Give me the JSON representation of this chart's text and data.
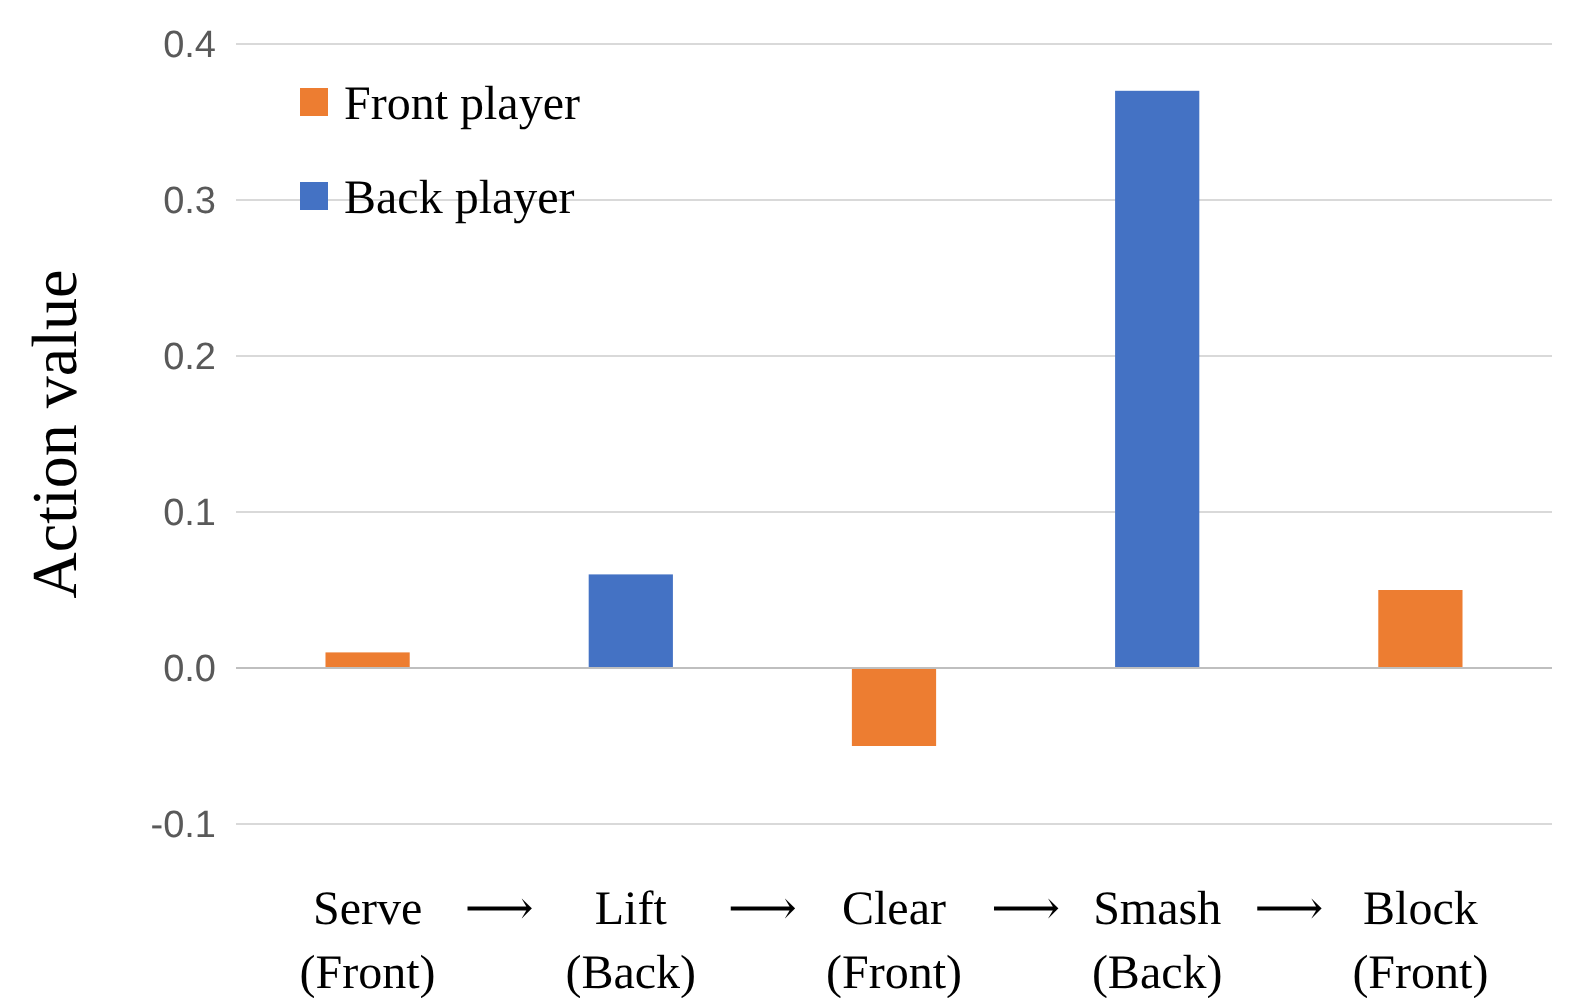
{
  "chart_data": {
    "type": "bar",
    "ylabel": "Action value",
    "categories": [
      "Serve (Front)",
      "Lift (Back)",
      "Clear (Front)",
      "Smash (Back)",
      "Block (Front)"
    ],
    "series": [
      {
        "name": "Front player",
        "color": "#ed7d31",
        "values": [
          0.01,
          null,
          -0.05,
          null,
          0.05
        ]
      },
      {
        "name": "Back player",
        "color": "#4472c4",
        "values": [
          null,
          0.06,
          null,
          0.37,
          null
        ]
      }
    ],
    "ylim": [
      -0.1,
      0.4
    ],
    "yticks": [
      {
        "value": -0.1,
        "label": "-0.1"
      },
      {
        "value": 0,
        "label": "0.0"
      },
      {
        "value": 0.1,
        "label": "0.1"
      },
      {
        "value": 0.2,
        "label": "0.2"
      },
      {
        "value": 0.3,
        "label": "0.3"
      },
      {
        "value": 0.4,
        "label": "0.4"
      }
    ],
    "grid": "y",
    "legend": "top left",
    "annotations": [
      "⟶",
      "⟶",
      "⟶",
      "⟶"
    ]
  }
}
